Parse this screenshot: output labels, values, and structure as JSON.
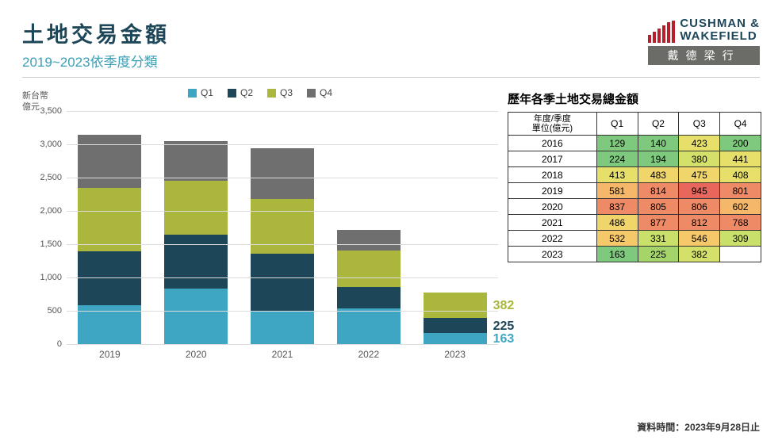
{
  "header": {
    "title": "土地交易金額",
    "title_color": "#1d4659",
    "subtitle": "2019~2023依季度分類",
    "subtitle_color": "#3a9fb5"
  },
  "logo": {
    "line1": "CUSHMAN &",
    "line2": "WAKEFIELD",
    "text_color": "#1d4659",
    "bar_color": "#b81f2d",
    "sub_label": "戴德梁行",
    "sub_bg": "#6b6b67"
  },
  "chart": {
    "type": "stacked-bar",
    "y_label_line1": "新台幣",
    "y_label_line2": "億元",
    "ylim": [
      0,
      3500
    ],
    "ytick_step": 500,
    "categories": [
      "2019",
      "2020",
      "2021",
      "2022",
      "2023"
    ],
    "legend_labels": [
      "Q1",
      "Q2",
      "Q3",
      "Q4"
    ],
    "series_colors": {
      "Q1": "#3ea6c2",
      "Q2": "#1d4659",
      "Q3": "#aab73c",
      "Q4": "#6f6f6f"
    },
    "data": {
      "2019": {
        "Q1": 581,
        "Q2": 814,
        "Q3": 945,
        "Q4": 801
      },
      "2020": {
        "Q1": 837,
        "Q2": 805,
        "Q3": 806,
        "Q4": 602
      },
      "2021": {
        "Q1": 486,
        "Q2": 877,
        "Q3": 812,
        "Q4": 768
      },
      "2022": {
        "Q1": 532,
        "Q2": 331,
        "Q3": 546,
        "Q4": 309
      },
      "2023": {
        "Q1": 163,
        "Q2": 225,
        "Q3": 382,
        "Q4": 0
      }
    },
    "callouts": [
      {
        "year": "2023",
        "label": "382",
        "color": "#aab73c"
      },
      {
        "year": "2023",
        "label": "225",
        "color": "#1d4659"
      },
      {
        "year": "2023",
        "label": "163",
        "color": "#3ea6c2"
      }
    ],
    "grid_color": "#dcdcdc",
    "tick_color": "#555555",
    "bar_group_width": 80,
    "plot_background": "#ffffff"
  },
  "table": {
    "title": "歷年各季土地交易總金額",
    "header_corner_line1": "年度/季度",
    "header_corner_line2": "單位(億元)",
    "columns": [
      "Q1",
      "Q2",
      "Q3",
      "Q4"
    ],
    "rows": [
      {
        "year": "2016",
        "cells": [
          {
            "v": 129,
            "c": "#7fc97f"
          },
          {
            "v": 140,
            "c": "#7fc97f"
          },
          {
            "v": 423,
            "c": "#e6e06a"
          },
          {
            "v": 200,
            "c": "#7fc97f"
          }
        ]
      },
      {
        "year": "2017",
        "cells": [
          {
            "v": 224,
            "c": "#7fc97f"
          },
          {
            "v": 194,
            "c": "#7fc97f"
          },
          {
            "v": 380,
            "c": "#d5e06a"
          },
          {
            "v": 441,
            "c": "#e6e06a"
          }
        ]
      },
      {
        "year": "2018",
        "cells": [
          {
            "v": 413,
            "c": "#e6e06a"
          },
          {
            "v": 483,
            "c": "#f0d56a"
          },
          {
            "v": 475,
            "c": "#f0d56a"
          },
          {
            "v": 408,
            "c": "#e6e06a"
          }
        ]
      },
      {
        "year": "2019",
        "cells": [
          {
            "v": 581,
            "c": "#f5b86a"
          },
          {
            "v": 814,
            "c": "#ef8a66"
          },
          {
            "v": 945,
            "c": "#e8665c"
          },
          {
            "v": 801,
            "c": "#ef8a66"
          }
        ]
      },
      {
        "year": "2020",
        "cells": [
          {
            "v": 837,
            "c": "#ef8a66"
          },
          {
            "v": 805,
            "c": "#ef8a66"
          },
          {
            "v": 806,
            "c": "#ef8a66"
          },
          {
            "v": 602,
            "c": "#f5b86a"
          }
        ]
      },
      {
        "year": "2021",
        "cells": [
          {
            "v": 486,
            "c": "#f0d56a"
          },
          {
            "v": 877,
            "c": "#ef8a66"
          },
          {
            "v": 812,
            "c": "#ef8a66"
          },
          {
            "v": 768,
            "c": "#ef8a66"
          }
        ]
      },
      {
        "year": "2022",
        "cells": [
          {
            "v": 532,
            "c": "#f5c86a"
          },
          {
            "v": 331,
            "c": "#c9e06a"
          },
          {
            "v": 546,
            "c": "#f5c86a"
          },
          {
            "v": 309,
            "c": "#c9e06a"
          }
        ]
      },
      {
        "year": "2023",
        "cells": [
          {
            "v": 163,
            "c": "#7fc97f"
          },
          {
            "v": 225,
            "c": "#a5d56a"
          },
          {
            "v": 382,
            "c": "#d5e06a"
          },
          {
            "v": "",
            "c": "#ffffff"
          }
        ]
      }
    ]
  },
  "footer": {
    "text": "資料時間：2023年9月28日止",
    "prefix": "資料時間：",
    "date": "2023年9月28日止"
  }
}
